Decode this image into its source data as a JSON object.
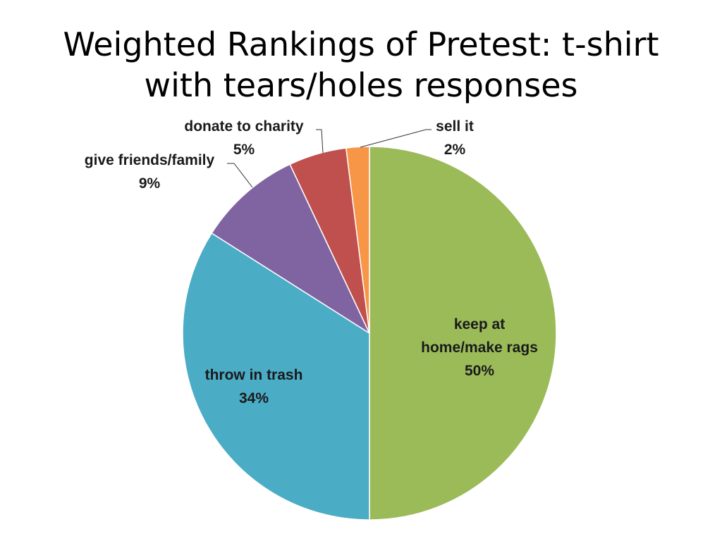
{
  "title_lines": [
    "Weighted Rankings of Pretest: t-shirt",
    "with tears/holes responses"
  ],
  "chart_data": {
    "type": "pie",
    "start_angle_deg": 0,
    "direction": "clockwise",
    "slices": [
      {
        "name": "keep at home/make rags",
        "label_lines": [
          "keep at",
          "home/make rags"
        ],
        "pct_label": "50%",
        "value": 50,
        "color": "#9bbb59"
      },
      {
        "name": "throw in trash",
        "label_lines": [
          "throw in trash"
        ],
        "pct_label": "34%",
        "value": 34,
        "color": "#4bacc6"
      },
      {
        "name": "give friends/family",
        "label_lines": [
          "give friends/family"
        ],
        "pct_label": "9%",
        "value": 9,
        "color": "#8064a2"
      },
      {
        "name": "donate to charity",
        "label_lines": [
          "donate to charity"
        ],
        "pct_label": "5%",
        "value": 5,
        "color": "#c0504d"
      },
      {
        "name": "sell it",
        "label_lines": [
          "sell it"
        ],
        "pct_label": "2%",
        "value": 2,
        "color": "#f79646"
      }
    ],
    "legend": "none"
  }
}
